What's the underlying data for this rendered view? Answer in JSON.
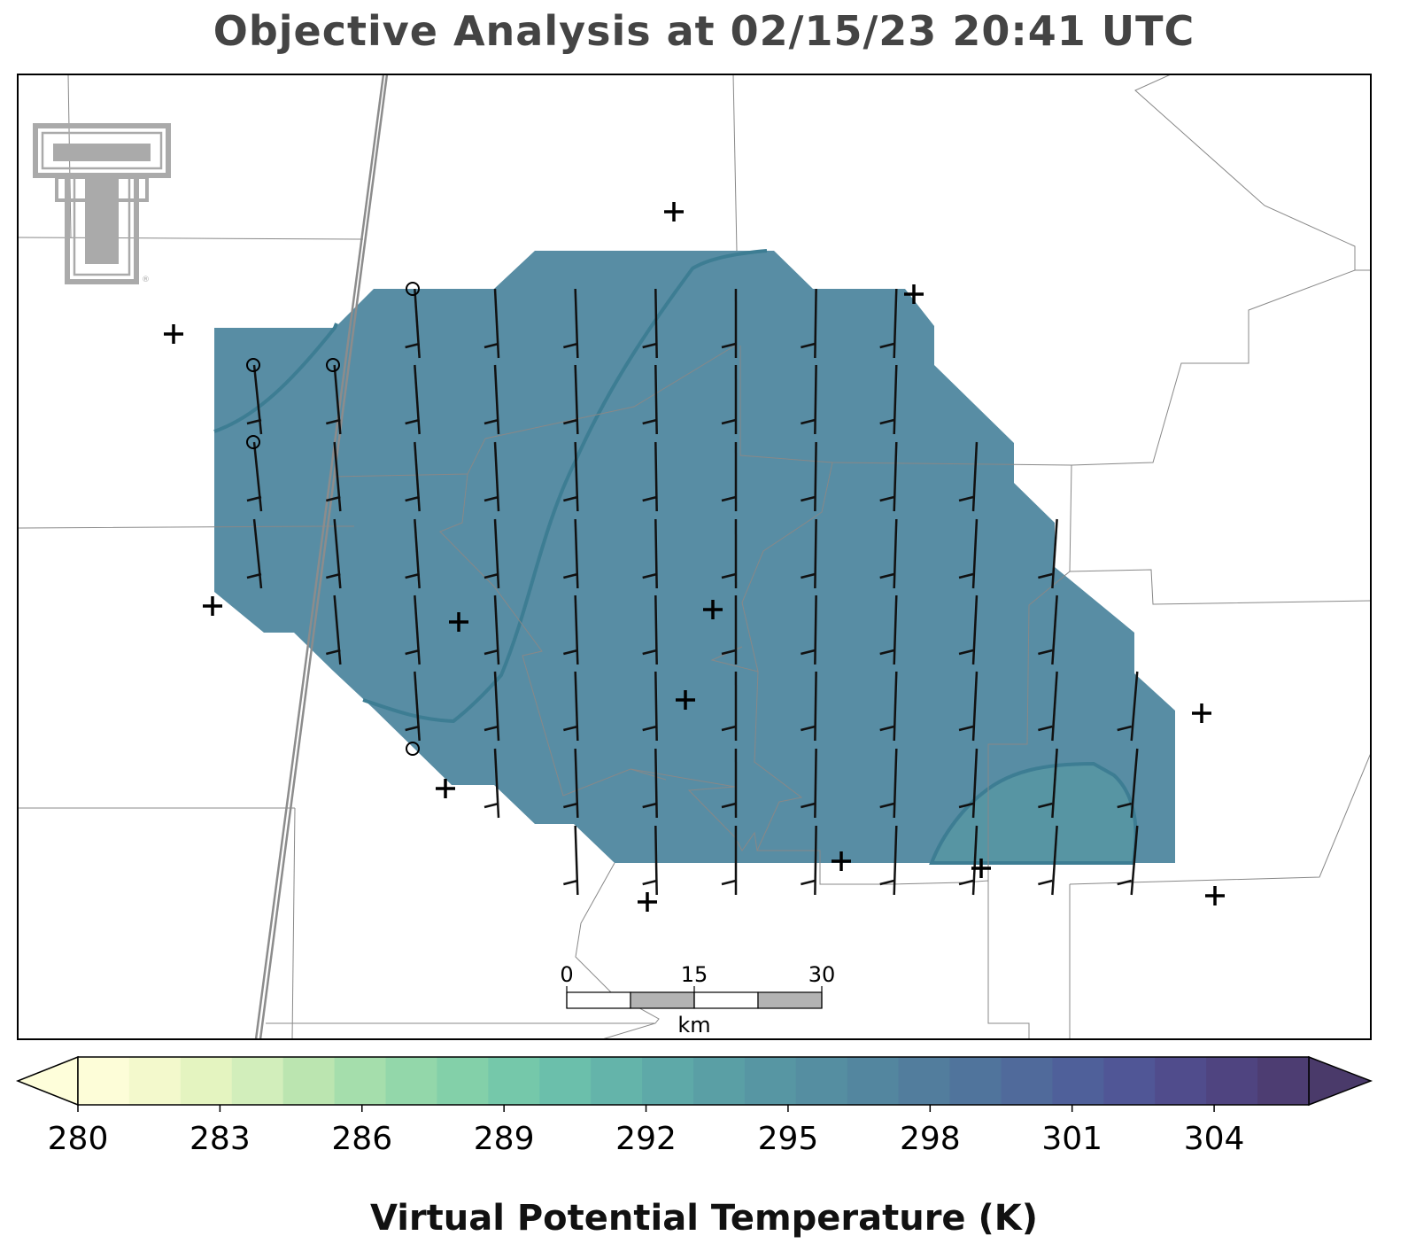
{
  "title": "Objective Analysis at 02/15/23 20:41 UTC",
  "colors": {
    "analysis_fill": "#4f879f",
    "contour": "#3d7d93",
    "warm_patch": "#5795a3",
    "boundary": "#888888",
    "road": "#8c8c8c",
    "logo": "#aaaaaa"
  },
  "logo": {
    "name": "Texas Tech double-T",
    "mark": "®"
  },
  "scale_bar": {
    "ticks": [
      "0",
      "15",
      "30"
    ],
    "unit": "km"
  },
  "colorbar": {
    "label": "Virtual Potential Temperature (K)",
    "vmin": 280,
    "vmax": 306,
    "step": 1,
    "ticks": [
      "280",
      "283",
      "286",
      "289",
      "292",
      "295",
      "298",
      "301",
      "304"
    ],
    "extend": "both",
    "colors": [
      "#fdfdd8",
      "#f3f9cc",
      "#e4f4c0",
      "#d2eebb",
      "#bbe5b0",
      "#a5deac",
      "#93d7aa",
      "#83d0a9",
      "#75c8aa",
      "#6bbfab",
      "#64b4aa",
      "#5ea9a8",
      "#5a9fa5",
      "#5796a3",
      "#558ea1",
      "#53869f",
      "#527d9d",
      "#50749c",
      "#506a9b",
      "#4f609a",
      "#505696",
      "#504c8c",
      "#4f4480",
      "#4d3d72"
    ],
    "under_color": "#fefeda",
    "over_color": "#4a3a6a"
  },
  "stations": {
    "plus": [
      [
        196,
        377
      ],
      [
        761,
        239
      ],
      [
        1032,
        332
      ],
      [
        240,
        684
      ],
      [
        518,
        702
      ],
      [
        805,
        688
      ],
      [
        774,
        790
      ],
      [
        1357,
        805
      ],
      [
        503,
        890
      ],
      [
        950,
        972
      ],
      [
        1108,
        980
      ],
      [
        731,
        1018
      ],
      [
        1372,
        1011
      ]
    ],
    "circle": [
      [
        466,
        326
      ],
      [
        286,
        412
      ],
      [
        376,
        412
      ],
      [
        286,
        499
      ],
      [
        466,
        845
      ]
    ]
  }
}
